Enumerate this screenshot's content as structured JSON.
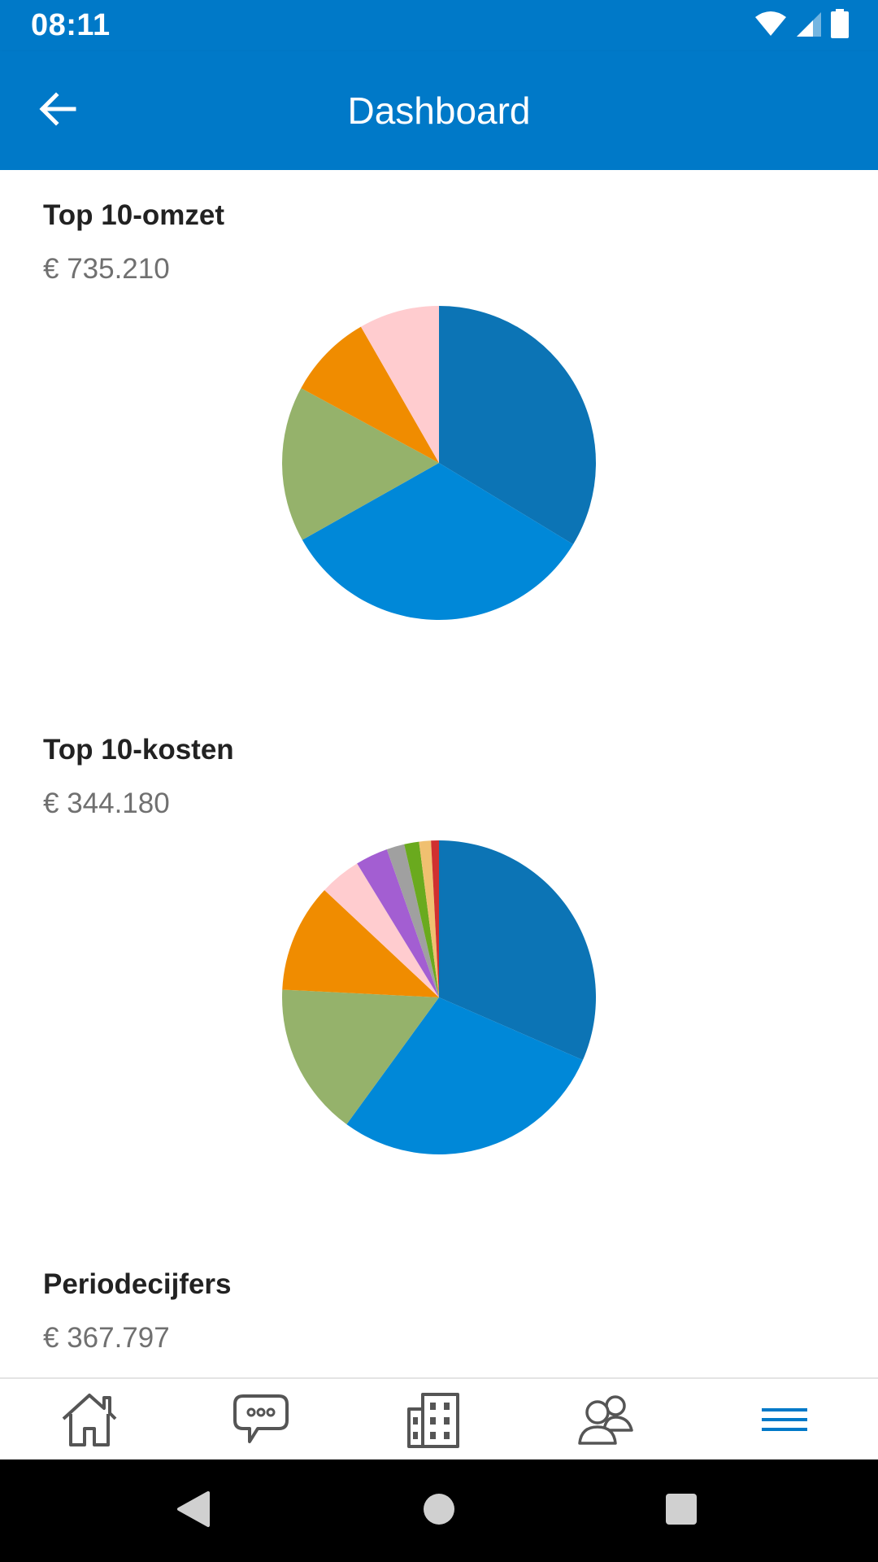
{
  "status_bar": {
    "time": "08:11",
    "icons": [
      "wifi-icon",
      "cell-signal-icon",
      "battery-icon"
    ]
  },
  "app_bar": {
    "title": "Dashboard",
    "back_icon": "arrow-back-icon"
  },
  "colors": {
    "primary": "#0079c8",
    "nav_active": "#0079c8",
    "nav_inactive": "#555555"
  },
  "sections": [
    {
      "title": "Top 10-omzet",
      "amount": "€ 735.210"
    },
    {
      "title": "Top 10-kosten",
      "amount": "€ 344.180"
    },
    {
      "title": "Periodecijfers",
      "amount": "€ 367.797"
    }
  ],
  "chart_data": [
    {
      "type": "pie",
      "values": [
        32.5,
        32.0,
        15.5,
        8.5,
        8.0
      ],
      "colors": [
        "#0c74b5",
        "#0088d8",
        "#95b26b",
        "#f08c00",
        "#ffcccf"
      ]
    },
    {
      "type": "pie",
      "values": [
        31.0,
        28.0,
        15.5,
        11.0,
        4.2,
        3.3,
        1.8,
        1.5,
        1.2,
        0.8
      ],
      "colors": [
        "#0c74b5",
        "#0088d8",
        "#95b26b",
        "#f08c00",
        "#ffcccf",
        "#a35ed2",
        "#a0a0a0",
        "#6aaa1e",
        "#f0c070",
        "#d03030"
      ]
    }
  ],
  "bottom_nav": {
    "items": [
      {
        "icon": "home-icon",
        "active": false
      },
      {
        "icon": "chat-icon",
        "active": false
      },
      {
        "icon": "building-icon",
        "active": false
      },
      {
        "icon": "contacts-icon",
        "active": false
      },
      {
        "icon": "menu-icon",
        "active": true
      }
    ]
  },
  "system_nav": {
    "items": [
      "back-triangle-icon",
      "home-circle-icon",
      "recents-square-icon"
    ]
  }
}
